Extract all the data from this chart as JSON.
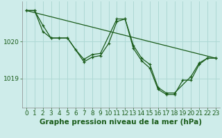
{
  "title": "Graphe pression niveau de la mer (hPa)",
  "background_color": "#ceecea",
  "grid_color": "#aed8d4",
  "line_color": "#1a5c1a",
  "xlim": [
    -0.5,
    23.5
  ],
  "ylim": [
    1018.2,
    1021.1
  ],
  "yticks": [
    1019,
    1020
  ],
  "xticks": [
    0,
    1,
    2,
    3,
    4,
    5,
    6,
    7,
    8,
    9,
    10,
    11,
    12,
    13,
    14,
    15,
    16,
    17,
    18,
    19,
    20,
    21,
    22,
    23
  ],
  "series1_x": [
    0,
    1,
    2,
    3,
    4,
    5,
    6,
    7,
    8,
    9,
    11,
    12,
    13,
    14,
    15,
    16,
    17,
    18,
    20,
    21,
    22,
    23
  ],
  "series1_y": [
    1020.85,
    1020.85,
    1020.45,
    1020.1,
    1020.1,
    1020.1,
    1019.78,
    1019.52,
    1019.65,
    1019.68,
    1020.62,
    1020.62,
    1019.9,
    1019.55,
    1019.38,
    1018.75,
    1018.6,
    1018.6,
    1019.05,
    1019.42,
    1019.55,
    1019.55
  ],
  "series2_x": [
    0,
    1,
    2,
    3,
    4,
    5,
    7,
    8,
    9,
    10,
    11,
    12,
    13,
    14,
    15,
    16,
    17,
    18,
    19,
    20,
    21,
    22,
    23
  ],
  "series2_y": [
    1020.85,
    1020.85,
    1020.28,
    1020.1,
    1020.1,
    1020.1,
    1019.45,
    1019.58,
    1019.62,
    1019.95,
    1020.55,
    1020.62,
    1019.82,
    1019.48,
    1019.28,
    1018.7,
    1018.56,
    1018.56,
    1018.95,
    1018.95,
    1019.38,
    1019.55,
    1019.55
  ],
  "trend_x": [
    0,
    23
  ],
  "trend_y": [
    1020.85,
    1019.55
  ],
  "xlabel_fontsize": 6.5,
  "ylabel_fontsize": 6.5,
  "title_fontsize": 7.5
}
